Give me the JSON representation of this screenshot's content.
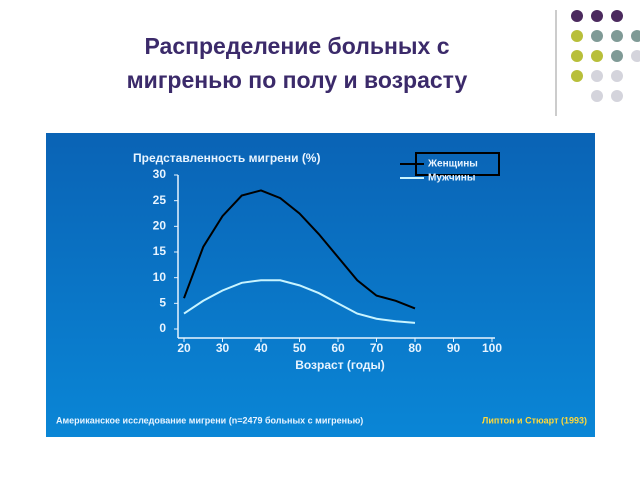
{
  "slide_title": [
    "Распределение больных с",
    "мигренью по полу и возрасту"
  ],
  "chart_data": {
    "type": "line",
    "title": "Представленность мигрени (%)",
    "x_label": "Возраст (годы)",
    "footnote": "Американское исследование мигрени (n=2479 больных с мигренью)",
    "source": "Липтон и Стюарт (1993)",
    "x": [
      20,
      25,
      30,
      35,
      40,
      45,
      50,
      55,
      60,
      65,
      70,
      75,
      80
    ],
    "series": [
      {
        "name": "Женщины",
        "color": "#000000",
        "values": [
          6,
          16,
          22,
          26,
          27,
          25.5,
          22.5,
          18.5,
          14,
          9.5,
          6.5,
          5.5,
          4
        ]
      },
      {
        "name": "Мужчины",
        "color": "#c8f4ff",
        "values": [
          3,
          5.5,
          7.5,
          9,
          9.5,
          9.5,
          8.5,
          7,
          5,
          3,
          2,
          1.5,
          1.2
        ]
      }
    ],
    "xlim": [
      20,
      100
    ],
    "xticks": [
      20,
      30,
      40,
      50,
      60,
      70,
      80,
      90,
      100
    ],
    "ylim": [
      0,
      30
    ],
    "yticks": [
      0,
      5,
      10,
      15,
      20,
      25,
      30
    ]
  }
}
